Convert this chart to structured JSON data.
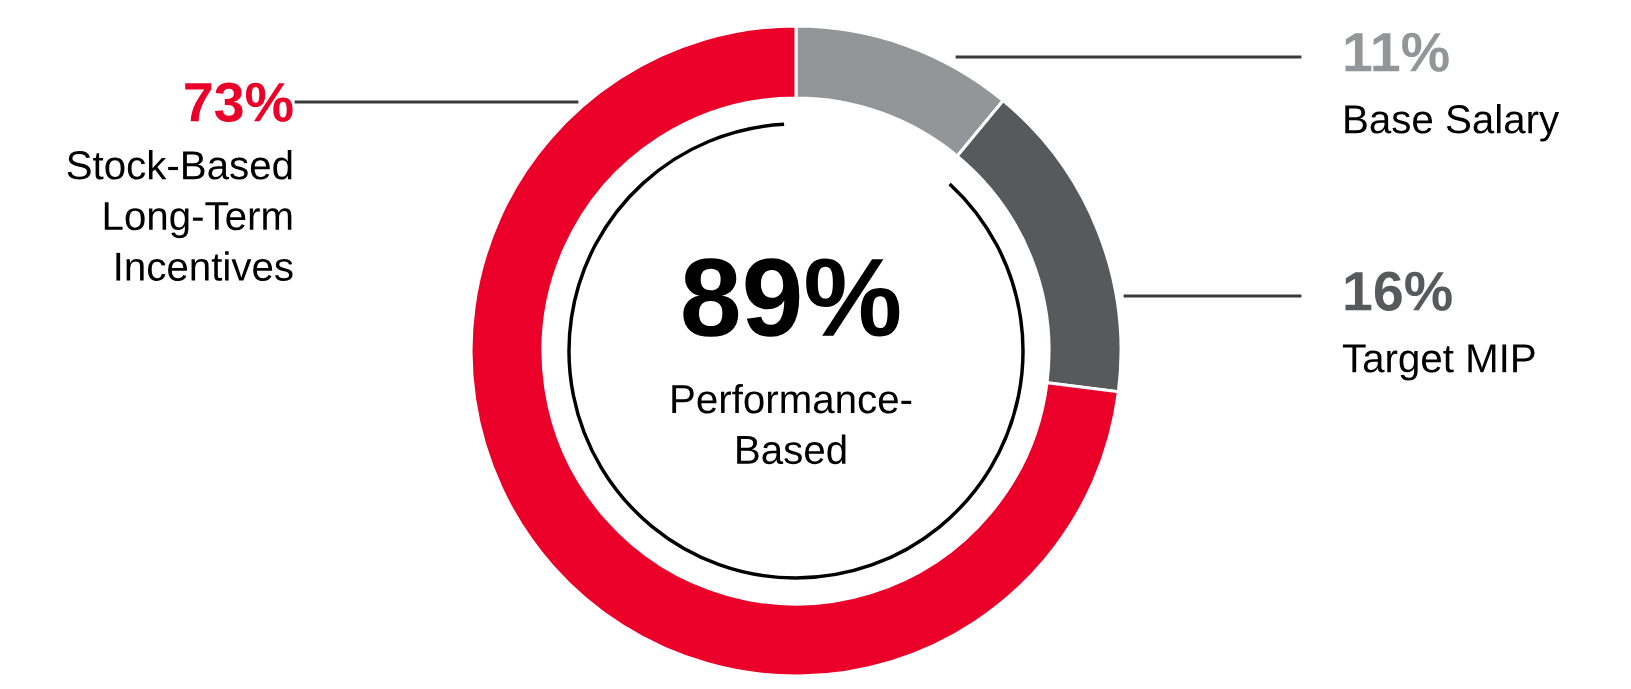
{
  "chart_data": {
    "type": "donut",
    "categories": [
      "Base Salary",
      "Target MIP",
      "Stock-Based\nLong-Term\nIncentives"
    ],
    "values": [
      11,
      16,
      73
    ],
    "colors": [
      "#939598",
      "#58595b",
      "#ea0029"
    ],
    "value_labels": [
      "11%",
      "16%",
      "73%"
    ],
    "annotations": [
      "89%",
      "Performance-\nBased"
    ],
    "legend": false
  }
}
